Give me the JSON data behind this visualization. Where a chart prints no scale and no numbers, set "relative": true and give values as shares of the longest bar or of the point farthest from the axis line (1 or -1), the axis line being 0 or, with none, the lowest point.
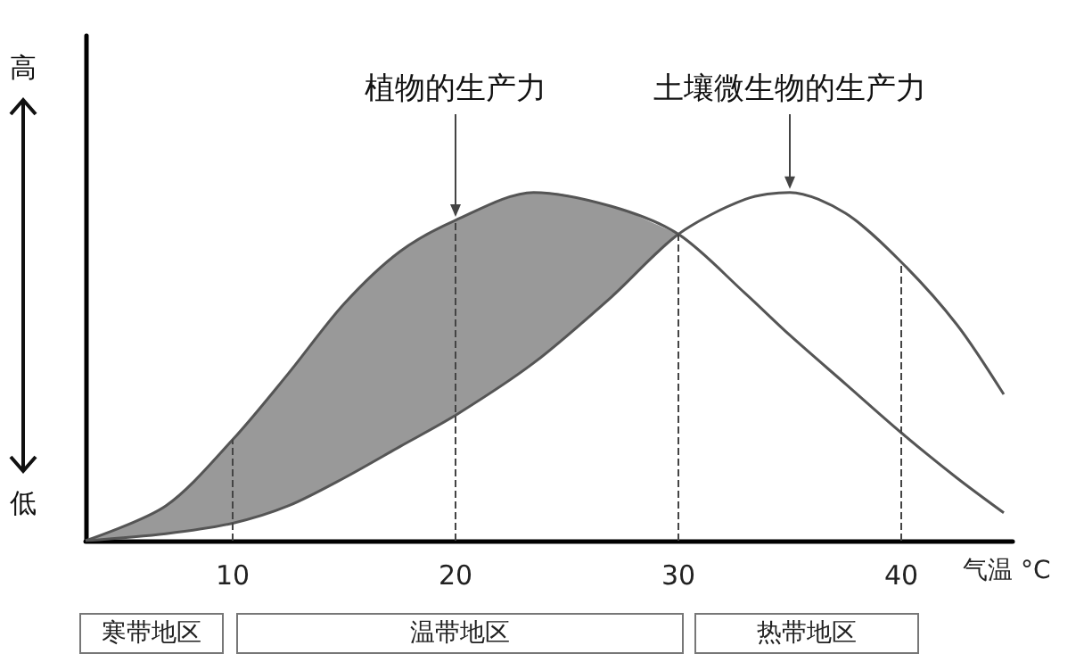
{
  "chart_data": {
    "type": "line",
    "relative": true,
    "xlabel": "气温 °C",
    "xlim": [
      3.4,
      45
    ],
    "xticks": [
      10,
      20,
      30,
      40
    ],
    "grid": false,
    "marker": "none",
    "line_style": "solid",
    "x": [
      3.4,
      7,
      10,
      12.5,
      15,
      17.5,
      20,
      23.5,
      27,
      30,
      33,
      35,
      37.5,
      40,
      42.5,
      44.6
    ],
    "series": [
      {
        "color": "#555555",
        "values": [
          0,
          0.1,
          0.29,
          0.48,
          0.68,
          0.83,
          0.92,
          1.0,
          0.96,
          0.88,
          0.71,
          0.59,
          0.45,
          0.31,
          0.18,
          0.08
        ],
        "lower": [
          0,
          0.02,
          0.05,
          0.1,
          0.18,
          0.27,
          0.36,
          0.51,
          0.7,
          0.88,
          null,
          null,
          null,
          null,
          null,
          null
        ],
        "upper": [
          0,
          0.1,
          0.29,
          0.48,
          0.68,
          0.83,
          0.92,
          1.0,
          0.96,
          0.88,
          null,
          null,
          null,
          null,
          null,
          null
        ]
      },
      {
        "color": "#555555",
        "values": [
          0,
          0.02,
          0.05,
          0.1,
          0.18,
          0.27,
          0.36,
          0.51,
          0.7,
          0.88,
          0.98,
          1.0,
          0.94,
          0.8,
          0.62,
          0.42
        ]
      }
    ],
    "ref_lines": [
      {
        "axis": "x",
        "value": 10,
        "line_style": "dashed"
      },
      {
        "axis": "x",
        "value": 20,
        "line_style": "dashed"
      },
      {
        "axis": "x",
        "value": 30,
        "line_style": "dashed"
      },
      {
        "axis": "x",
        "value": 40,
        "line_style": "dashed"
      }
    ],
    "annotations": [
      {
        "text": "植物的生产力",
        "x": 20,
        "y": 0.92
      },
      {
        "text": "土壤微生物的生产力",
        "x": 35,
        "y": 1.0
      },
      "高",
      "低",
      "寒带地区",
      "温带地区",
      "热带地区"
    ]
  }
}
